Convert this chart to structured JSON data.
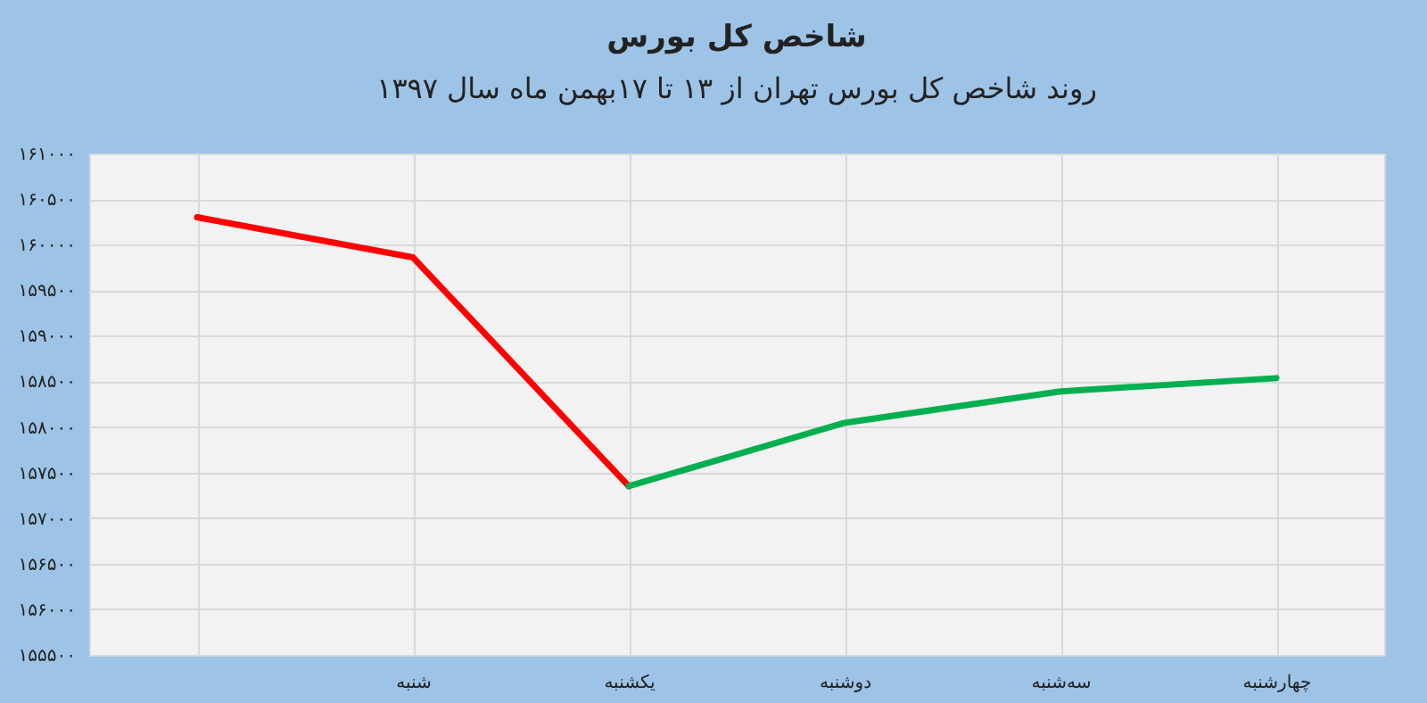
{
  "chart_data": {
    "type": "line",
    "title": "شاخص کل بورس",
    "subtitle": "روند شاخص کل بورس تهران از ۱۳ تا ۱۷بهمن ماه سال ۱۳۹۷",
    "categories": [
      null,
      "شنبه",
      "یکشنبه",
      "دوشنبه",
      "سه‌شنبه",
      "چهارشنبه"
    ],
    "series": [
      {
        "color": "#ff0000",
        "values": [
          160300,
          159860,
          157350,
          null,
          null,
          null
        ]
      },
      {
        "color": "#00b050",
        "values": [
          null,
          null,
          157350,
          158045,
          158390,
          158535
        ]
      }
    ],
    "ylim": [
      155500,
      161000
    ],
    "yticks": [
      {
        "value": 155500,
        "label": "۱۵۵۵۰۰"
      },
      {
        "value": 156000,
        "label": "۱۵۶۰۰۰"
      },
      {
        "value": 156500,
        "label": "۱۵۶۵۰۰"
      },
      {
        "value": 157000,
        "label": "۱۵۷۰۰۰"
      },
      {
        "value": 157500,
        "label": "۱۵۷۵۰۰"
      },
      {
        "value": 158000,
        "label": "۱۵۸۰۰۰"
      },
      {
        "value": 158500,
        "label": "۱۵۸۵۰۰"
      },
      {
        "value": 159000,
        "label": "۱۵۹۰۰۰"
      },
      {
        "value": 159500,
        "label": "۱۵۹۵۰۰"
      },
      {
        "value": 160000,
        "label": "۱۶۰۰۰۰"
      },
      {
        "value": 160500,
        "label": "۱۶۰۵۰۰"
      },
      {
        "value": 161000,
        "label": "۱۶۱۰۰۰"
      }
    ],
    "grid": true,
    "line_style": "solid"
  }
}
